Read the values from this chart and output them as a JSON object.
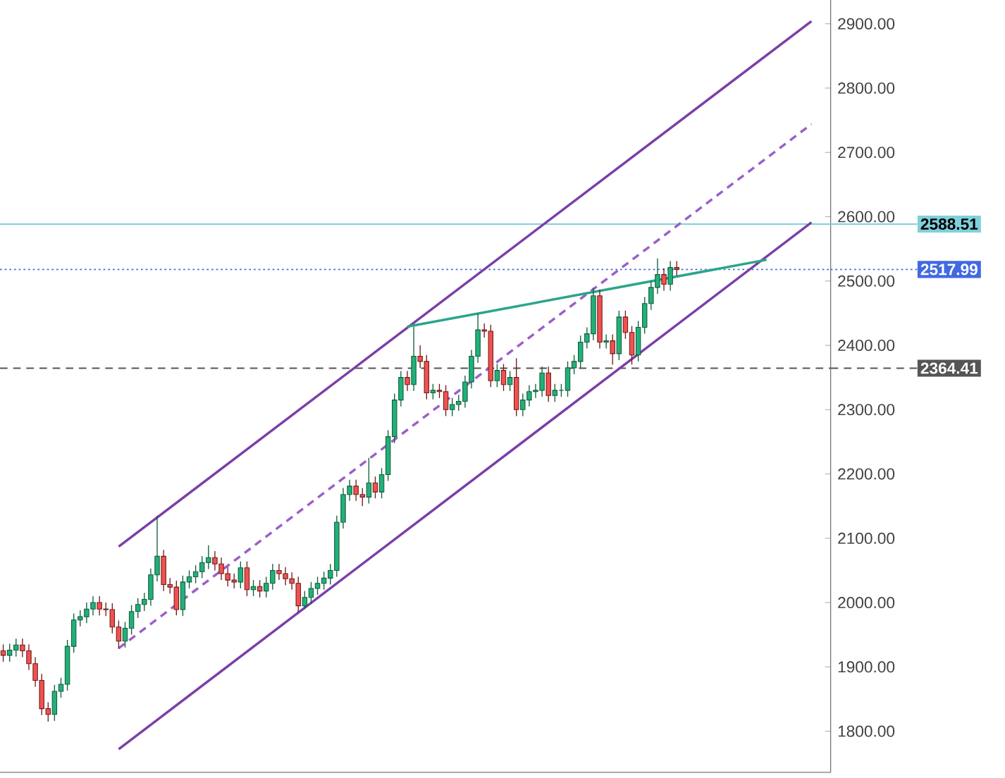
{
  "chart_data": {
    "type": "candlestick",
    "categories": [
      null,
      null,
      null,
      null,
      null,
      null,
      null,
      null,
      null,
      null,
      null,
      null,
      null,
      null,
      null,
      null,
      null,
      null,
      null,
      null,
      null,
      null,
      null,
      null,
      null,
      null,
      null,
      null,
      null,
      null,
      null,
      null,
      null,
      null,
      null,
      null,
      null,
      null,
      null,
      null,
      null,
      null,
      null,
      null,
      null,
      null,
      null,
      null,
      null,
      null,
      null,
      null,
      null,
      null,
      null,
      null,
      null,
      null,
      null,
      null,
      null,
      null,
      null,
      null,
      null,
      null,
      null,
      null,
      null,
      null,
      null,
      null,
      null,
      null,
      null,
      null,
      null,
      null,
      null,
      null,
      null,
      null,
      null,
      null,
      null,
      null,
      null,
      null,
      null,
      null,
      null,
      null,
      null,
      null,
      null,
      null,
      null,
      null,
      null,
      null,
      null,
      null,
      null,
      null,
      null,
      null,
      null,
      null,
      null,
      null,
      null,
      null,
      null,
      null,
      null,
      null,
      null,
      null,
      null,
      null,
      null,
      null,
      null,
      null,
      null,
      null,
      null
    ],
    "ohlc": [
      [
        1925,
        1935,
        1908,
        1918
      ],
      [
        1918,
        1936,
        1908,
        1926
      ],
      [
        1926,
        1944,
        1916,
        1934
      ],
      [
        1934,
        1944,
        1915,
        1925
      ],
      [
        1925,
        1935,
        1895,
        1905
      ],
      [
        1905,
        1915,
        1869,
        1879
      ],
      [
        1879,
        1889,
        1825,
        1835
      ],
      [
        1835,
        1845,
        1815,
        1826
      ],
      [
        1826,
        1872,
        1816,
        1862
      ],
      [
        1862,
        1883,
        1852,
        1873
      ],
      [
        1873,
        1942,
        1863,
        1932
      ],
      [
        1932,
        1983,
        1922,
        1973
      ],
      [
        1973,
        1988,
        1963,
        1978
      ],
      [
        1978,
        2000,
        1968,
        1990
      ],
      [
        1990,
        2010,
        1980,
        2000
      ],
      [
        2000,
        2010,
        1980,
        1990
      ],
      [
        1990,
        2000,
        1979,
        1989
      ],
      [
        1989,
        1999,
        1952,
        1962
      ],
      [
        1962,
        1972,
        1928,
        1940
      ],
      [
        1940,
        1970,
        1930,
        1960
      ],
      [
        1960,
        1996,
        1950,
        1986
      ],
      [
        1986,
        2007,
        1976,
        1997
      ],
      [
        1997,
        2015,
        1987,
        2005
      ],
      [
        2005,
        2053,
        1995,
        2043
      ],
      [
        2043,
        2135,
        2033,
        2072
      ],
      [
        2072,
        2082,
        2018,
        2028
      ],
      [
        2028,
        2038,
        2014,
        2024
      ],
      [
        2024,
        2034,
        1980,
        1989
      ],
      [
        1989,
        2042,
        1979,
        2032
      ],
      [
        2032,
        2050,
        2022,
        2040
      ],
      [
        2040,
        2058,
        2030,
        2048
      ],
      [
        2048,
        2072,
        2038,
        2062
      ],
      [
        2062,
        2089,
        2052,
        2070
      ],
      [
        2070,
        2080,
        2050,
        2060
      ],
      [
        2060,
        2070,
        2035,
        2045
      ],
      [
        2045,
        2055,
        2025,
        2035
      ],
      [
        2035,
        2045,
        2022,
        2032
      ],
      [
        2032,
        2064,
        2022,
        2054
      ],
      [
        2054,
        2064,
        2010,
        2020
      ],
      [
        2020,
        2035,
        2010,
        2025
      ],
      [
        2025,
        2035,
        2008,
        2018
      ],
      [
        2018,
        2040,
        2008,
        2030
      ],
      [
        2030,
        2060,
        2020,
        2050
      ],
      [
        2050,
        2060,
        2035,
        2045
      ],
      [
        2045,
        2055,
        2027,
        2037
      ],
      [
        2037,
        2047,
        2020,
        2030
      ],
      [
        2030,
        2040,
        1985,
        1995
      ],
      [
        1995,
        2018,
        1990,
        2008
      ],
      [
        2008,
        2032,
        1998,
        2022
      ],
      [
        2022,
        2040,
        2012,
        2030
      ],
      [
        2030,
        2048,
        2020,
        2038
      ],
      [
        2038,
        2060,
        2028,
        2050
      ],
      [
        2050,
        2135,
        2040,
        2125
      ],
      [
        2125,
        2178,
        2115,
        2168
      ],
      [
        2168,
        2191,
        2158,
        2181
      ],
      [
        2181,
        2191,
        2158,
        2168
      ],
      [
        2168,
        2178,
        2150,
        2164
      ],
      [
        2164,
        2225,
        2154,
        2186
      ],
      [
        2186,
        2196,
        2162,
        2172
      ],
      [
        2172,
        2209,
        2162,
        2199
      ],
      [
        2199,
        2268,
        2189,
        2258
      ],
      [
        2258,
        2325,
        2248,
        2315
      ],
      [
        2315,
        2360,
        2305,
        2350
      ],
      [
        2350,
        2360,
        2329,
        2339
      ],
      [
        2339,
        2429,
        2329,
        2383
      ],
      [
        2383,
        2400,
        2365,
        2375
      ],
      [
        2375,
        2385,
        2316,
        2326
      ],
      [
        2326,
        2340,
        2316,
        2330
      ],
      [
        2330,
        2340,
        2318,
        2328
      ],
      [
        2328,
        2338,
        2290,
        2300
      ],
      [
        2300,
        2318,
        2290,
        2308
      ],
      [
        2308,
        2323,
        2298,
        2313
      ],
      [
        2313,
        2353,
        2303,
        2343
      ],
      [
        2343,
        2393,
        2333,
        2383
      ],
      [
        2383,
        2449,
        2373,
        2424
      ],
      [
        2424,
        2434,
        2412,
        2422
      ],
      [
        2422,
        2432,
        2335,
        2345
      ],
      [
        2345,
        2371,
        2335,
        2361
      ],
      [
        2361,
        2371,
        2329,
        2339
      ],
      [
        2339,
        2360,
        2329,
        2350
      ],
      [
        2350,
        2380,
        2290,
        2300
      ],
      [
        2300,
        2325,
        2290,
        2315
      ],
      [
        2315,
        2338,
        2305,
        2328
      ],
      [
        2328,
        2340,
        2318,
        2330
      ],
      [
        2330,
        2367,
        2320,
        2357
      ],
      [
        2357,
        2367,
        2312,
        2322
      ],
      [
        2322,
        2340,
        2312,
        2330
      ],
      [
        2330,
        2340,
        2320,
        2330
      ],
      [
        2330,
        2375,
        2320,
        2365
      ],
      [
        2365,
        2385,
        2355,
        2375
      ],
      [
        2375,
        2415,
        2365,
        2405
      ],
      [
        2405,
        2428,
        2395,
        2418
      ],
      [
        2418,
        2490,
        2408,
        2477
      ],
      [
        2477,
        2487,
        2395,
        2405
      ],
      [
        2405,
        2417,
        2395,
        2407
      ],
      [
        2407,
        2417,
        2370,
        2387
      ],
      [
        2387,
        2454,
        2377,
        2444
      ],
      [
        2444,
        2454,
        2410,
        2420
      ],
      [
        2420,
        2430,
        2370,
        2385
      ],
      [
        2385,
        2438,
        2375,
        2428
      ],
      [
        2428,
        2475,
        2418,
        2465
      ],
      [
        2465,
        2500,
        2455,
        2490
      ],
      [
        2490,
        2535,
        2480,
        2510
      ],
      [
        2510,
        2520,
        2485,
        2495
      ],
      [
        2495,
        2531,
        2485,
        2521
      ],
      [
        2521,
        2531,
        2508,
        2517.99
      ],
      null,
      null,
      null,
      null,
      null,
      null,
      null,
      null,
      null,
      null,
      null,
      null,
      null,
      null,
      null,
      null,
      null,
      null,
      null,
      null,
      null
    ],
    "series": [
      {
        "type": "line",
        "color": "#7b3fa8",
        "line_style": "solid",
        "values": [
          null,
          null,
          null,
          null,
          null,
          null,
          null,
          null,
          null,
          null,
          null,
          null,
          null,
          null,
          null,
          null,
          null,
          null,
          2087,
          null,
          null,
          null,
          null,
          null,
          null,
          null,
          null,
          null,
          null,
          null,
          null,
          null,
          null,
          null,
          null,
          null,
          null,
          null,
          null,
          null,
          null,
          null,
          null,
          null,
          null,
          null,
          null,
          null,
          null,
          null,
          null,
          null,
          null,
          null,
          null,
          null,
          null,
          null,
          null,
          null,
          null,
          null,
          null,
          null,
          null,
          null,
          null,
          null,
          null,
          null,
          null,
          null,
          null,
          null,
          null,
          null,
          null,
          null,
          null,
          null,
          null,
          null,
          null,
          null,
          null,
          null,
          null,
          null,
          null,
          null,
          null,
          null,
          null,
          null,
          null,
          null,
          null,
          null,
          null,
          null,
          null,
          null,
          null,
          null,
          null,
          null,
          null,
          null,
          null,
          null,
          null,
          null,
          null,
          null,
          null,
          null,
          null,
          null,
          null,
          null,
          null,
          null,
          null,
          null,
          null,
          null,
          2904
        ]
      },
      {
        "type": "line",
        "color": "#9b5fc8",
        "line_style": "dashed",
        "values": [
          null,
          null,
          null,
          null,
          null,
          null,
          null,
          null,
          null,
          null,
          null,
          null,
          null,
          null,
          null,
          null,
          null,
          null,
          1929,
          null,
          null,
          null,
          null,
          null,
          null,
          null,
          null,
          null,
          null,
          null,
          null,
          null,
          null,
          null,
          null,
          null,
          null,
          null,
          null,
          null,
          null,
          null,
          null,
          null,
          null,
          null,
          null,
          null,
          null,
          null,
          null,
          null,
          null,
          null,
          null,
          null,
          null,
          null,
          null,
          null,
          null,
          null,
          null,
          null,
          null,
          null,
          null,
          null,
          null,
          null,
          null,
          null,
          null,
          null,
          null,
          null,
          null,
          null,
          null,
          null,
          null,
          null,
          null,
          null,
          null,
          null,
          null,
          null,
          null,
          null,
          null,
          null,
          null,
          null,
          null,
          null,
          null,
          null,
          null,
          null,
          null,
          null,
          null,
          null,
          null,
          null,
          null,
          null,
          null,
          null,
          null,
          null,
          null,
          null,
          null,
          null,
          null,
          null,
          null,
          null,
          null,
          null,
          null,
          null,
          null,
          null,
          2744
        ]
      },
      {
        "type": "line",
        "color": "#7b3fa8",
        "line_style": "solid",
        "values": [
          null,
          null,
          null,
          null,
          null,
          null,
          null,
          null,
          null,
          null,
          null,
          null,
          null,
          null,
          null,
          null,
          null,
          null,
          1772,
          null,
          null,
          null,
          null,
          null,
          null,
          null,
          null,
          null,
          null,
          null,
          null,
          null,
          null,
          null,
          null,
          null,
          null,
          null,
          null,
          null,
          null,
          null,
          null,
          null,
          null,
          null,
          null,
          null,
          null,
          null,
          null,
          null,
          null,
          null,
          null,
          null,
          null,
          null,
          null,
          null,
          null,
          null,
          null,
          null,
          null,
          null,
          null,
          null,
          null,
          null,
          null,
          null,
          null,
          null,
          null,
          null,
          null,
          null,
          null,
          null,
          null,
          null,
          null,
          null,
          null,
          null,
          null,
          null,
          null,
          null,
          null,
          null,
          null,
          null,
          null,
          null,
          null,
          null,
          null,
          null,
          null,
          null,
          null,
          null,
          null,
          null,
          null,
          null,
          null,
          null,
          null,
          null,
          null,
          null,
          null,
          null,
          null,
          null,
          null,
          null,
          null,
          null,
          null,
          null,
          null,
          null,
          2591
        ]
      },
      {
        "type": "line",
        "color": "#2aa58a",
        "line_style": "solid",
        "values": [
          null,
          null,
          null,
          null,
          null,
          null,
          null,
          null,
          null,
          null,
          null,
          null,
          null,
          null,
          null,
          null,
          null,
          null,
          null,
          null,
          null,
          null,
          null,
          null,
          null,
          null,
          null,
          null,
          null,
          null,
          null,
          null,
          null,
          null,
          null,
          null,
          null,
          null,
          null,
          null,
          null,
          null,
          null,
          null,
          null,
          null,
          null,
          null,
          null,
          null,
          null,
          null,
          null,
          null,
          null,
          null,
          null,
          null,
          null,
          null,
          null,
          null,
          null,
          2429,
          null,
          null,
          null,
          null,
          null,
          null,
          null,
          null,
          null,
          null,
          null,
          null,
          null,
          null,
          null,
          null,
          null,
          null,
          null,
          null,
          null,
          null,
          null,
          null,
          null,
          null,
          null,
          null,
          null,
          null,
          null,
          null,
          null,
          null,
          null,
          null,
          null,
          null,
          null,
          null,
          null,
          null,
          null,
          null,
          null,
          null,
          null,
          null,
          null,
          null,
          null,
          null,
          null,
          null,
          null,
          2533,
          null,
          null,
          null,
          null,
          null,
          null,
          null
        ]
      }
    ],
    "ylim": [
      1736,
      2937
    ],
    "yticks": [
      {
        "value": 1800,
        "label": "1800.00"
      },
      {
        "value": 1900,
        "label": "1900.00"
      },
      {
        "value": 2000,
        "label": "2000.00"
      },
      {
        "value": 2100,
        "label": "2100.00"
      },
      {
        "value": 2200,
        "label": "2200.00"
      },
      {
        "value": 2300,
        "label": "2300.00"
      },
      {
        "value": 2400,
        "label": "2400.00"
      },
      {
        "value": 2500,
        "label": "2500.00"
      },
      {
        "value": 2600,
        "label": "2600.00"
      },
      {
        "value": 2700,
        "label": "2700.00"
      },
      {
        "value": 2800,
        "label": "2800.00"
      },
      {
        "value": 2900,
        "label": "2900.00"
      }
    ],
    "ref_lines": [
      {
        "axis": "y",
        "value": 2588.51,
        "label": "2588.51",
        "color": "#80d0dc",
        "line_style": "solid"
      },
      {
        "axis": "y",
        "value": 2517.99,
        "label": "2517.99",
        "color": "#4169e1",
        "line_style": "dotted"
      },
      {
        "axis": "y",
        "value": 2364.41,
        "label": "2364.41",
        "color": "#555555",
        "line_style": "dashed"
      }
    ],
    "marker": "none",
    "grid": false,
    "tick_labels": "y"
  }
}
